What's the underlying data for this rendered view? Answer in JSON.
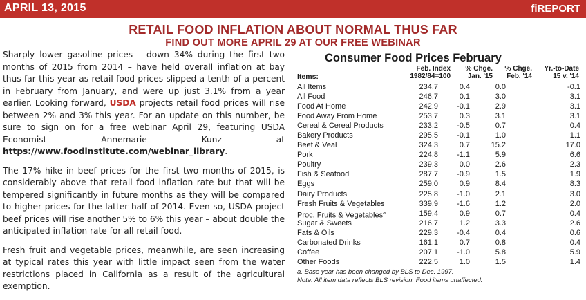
{
  "header": {
    "date": "APRIL 13, 2015",
    "brand": "fiREPORT",
    "bar_color": "#c0302a"
  },
  "headline": {
    "title": "RETAIL FOOD INFLATION ABOUT NORMAL THUS FAR",
    "subtitle": "FIND OUT MORE APRIL 29 AT OUR FREE WEBINAR"
  },
  "article": {
    "p1_a": "Sharply lower gasoline prices – down 34% during the first two months of 2015 from 2014 – have held overall inflation at bay thus far this year as retail food prices slipped a tenth of a percent in February from January, and were up just 3.1% from a year earlier. Looking forward, ",
    "p1_hl": "USDA",
    "p1_b": " projects retail food prices will rise between 2% and 3% this year. For an update on this number, be sure to sign on for a free webinar April 29, featuring USDA Economist Annemarie Kunz at ",
    "p1_url": "https://www.foodinstitute.com/webinar_library",
    "p1_end": ".",
    "p2": "The 17% hike in beef prices for the first two months of 2015, is considerably above that retail food inflation rate but that will be tempered significantly in future months as they will be compared to higher prices for the latter half of 2014. Even so, USDA project beef prices will rise another 5% to 6% this year – about double the anticipated inflation rate for all retail food.",
    "p3": "Fresh fruit and vegetable prices, meanwhile, are seen increasing at typical rates this year with little impact seen from the water restrictions placed in California as a result of the agricultural exemption."
  },
  "table": {
    "title": "Consumer Food Prices February",
    "items_label": "Items:",
    "col1": [
      "Feb. Index",
      "1982/84=100"
    ],
    "col2": [
      "% Chge.",
      "Jan. '15"
    ],
    "col3": [
      "% Chge.",
      "Feb. '14"
    ],
    "col4": [
      "Yr.-to-Date",
      "15 v. '14"
    ],
    "rows": [
      {
        "name": "All Items",
        "index": "234.7",
        "jan": "0.4",
        "feb": "0.0",
        "ytd": "-0.1"
      },
      {
        "name": "All Food",
        "index": "246.7",
        "jan": "0.1",
        "feb": "3.0",
        "ytd": "3.1"
      },
      {
        "name": "Food At Home",
        "index": "242.9",
        "jan": "-0.1",
        "feb": "2.9",
        "ytd": "3.1"
      },
      {
        "name": "Food Away From Home",
        "index": "253.7",
        "jan": "0.3",
        "feb": "3.1",
        "ytd": "3.1"
      },
      {
        "name": "Cereal & Cereal Products",
        "index": "233.2",
        "jan": "-0.5",
        "feb": "0.7",
        "ytd": "0.4"
      },
      {
        "name": "Bakery Products",
        "index": "295.5",
        "jan": "-0.1",
        "feb": "1.0",
        "ytd": "1.1"
      },
      {
        "name": "Beef & Veal",
        "index": "324.3",
        "jan": "0.7",
        "feb": "15.2",
        "ytd": "17.0"
      },
      {
        "name": "Pork",
        "index": "224.8",
        "jan": "-1.1",
        "feb": "5.9",
        "ytd": "6.6"
      },
      {
        "name": "Poultry",
        "index": "239.3",
        "jan": "0.0",
        "feb": "2.6",
        "ytd": "2.3"
      },
      {
        "name": "Fish & Seafood",
        "index": "287.7",
        "jan": "-0.9",
        "feb": "1.5",
        "ytd": "1.9"
      },
      {
        "name": "Eggs",
        "index": "259.0",
        "jan": "0.9",
        "feb": "8.4",
        "ytd": "8.3"
      },
      {
        "name": "Dairy Products",
        "index": "225.8",
        "jan": "-1.0",
        "feb": "2.1",
        "ytd": "3.0"
      },
      {
        "name": "Fresh Fruits & Vegetables",
        "index": "339.9",
        "jan": "-1.6",
        "feb": "1.2",
        "ytd": "2.0"
      },
      {
        "name": "Proc. Fruits & Vegetables",
        "sup": "a",
        "index": "159.4",
        "jan": "0.9",
        "feb": "0.7",
        "ytd": "0.4"
      },
      {
        "name": "Sugar & Sweets",
        "index": "216.7",
        "jan": "1.2",
        "feb": "3.3",
        "ytd": "2.6"
      },
      {
        "name": "Fats & Oils",
        "index": "229.3",
        "jan": "-0.4",
        "feb": "0.4",
        "ytd": "0.6"
      },
      {
        "name": "Carbonated Drinks",
        "index": "161.1",
        "jan": "0.7",
        "feb": "0.8",
        "ytd": "0.4"
      },
      {
        "name": "Coffee",
        "index": "207.1",
        "jan": "-1.0",
        "feb": "5.8",
        "ytd": "5.9"
      },
      {
        "name": "Other Foods",
        "index": "222.5",
        "jan": "1.0",
        "feb": "1.5",
        "ytd": "1.4"
      }
    ],
    "note_a": "a. Base year has been changed by BLS to Dec. 1997.",
    "note_b": "Note: All item data reflects BLS revision. Food items unaffected."
  }
}
